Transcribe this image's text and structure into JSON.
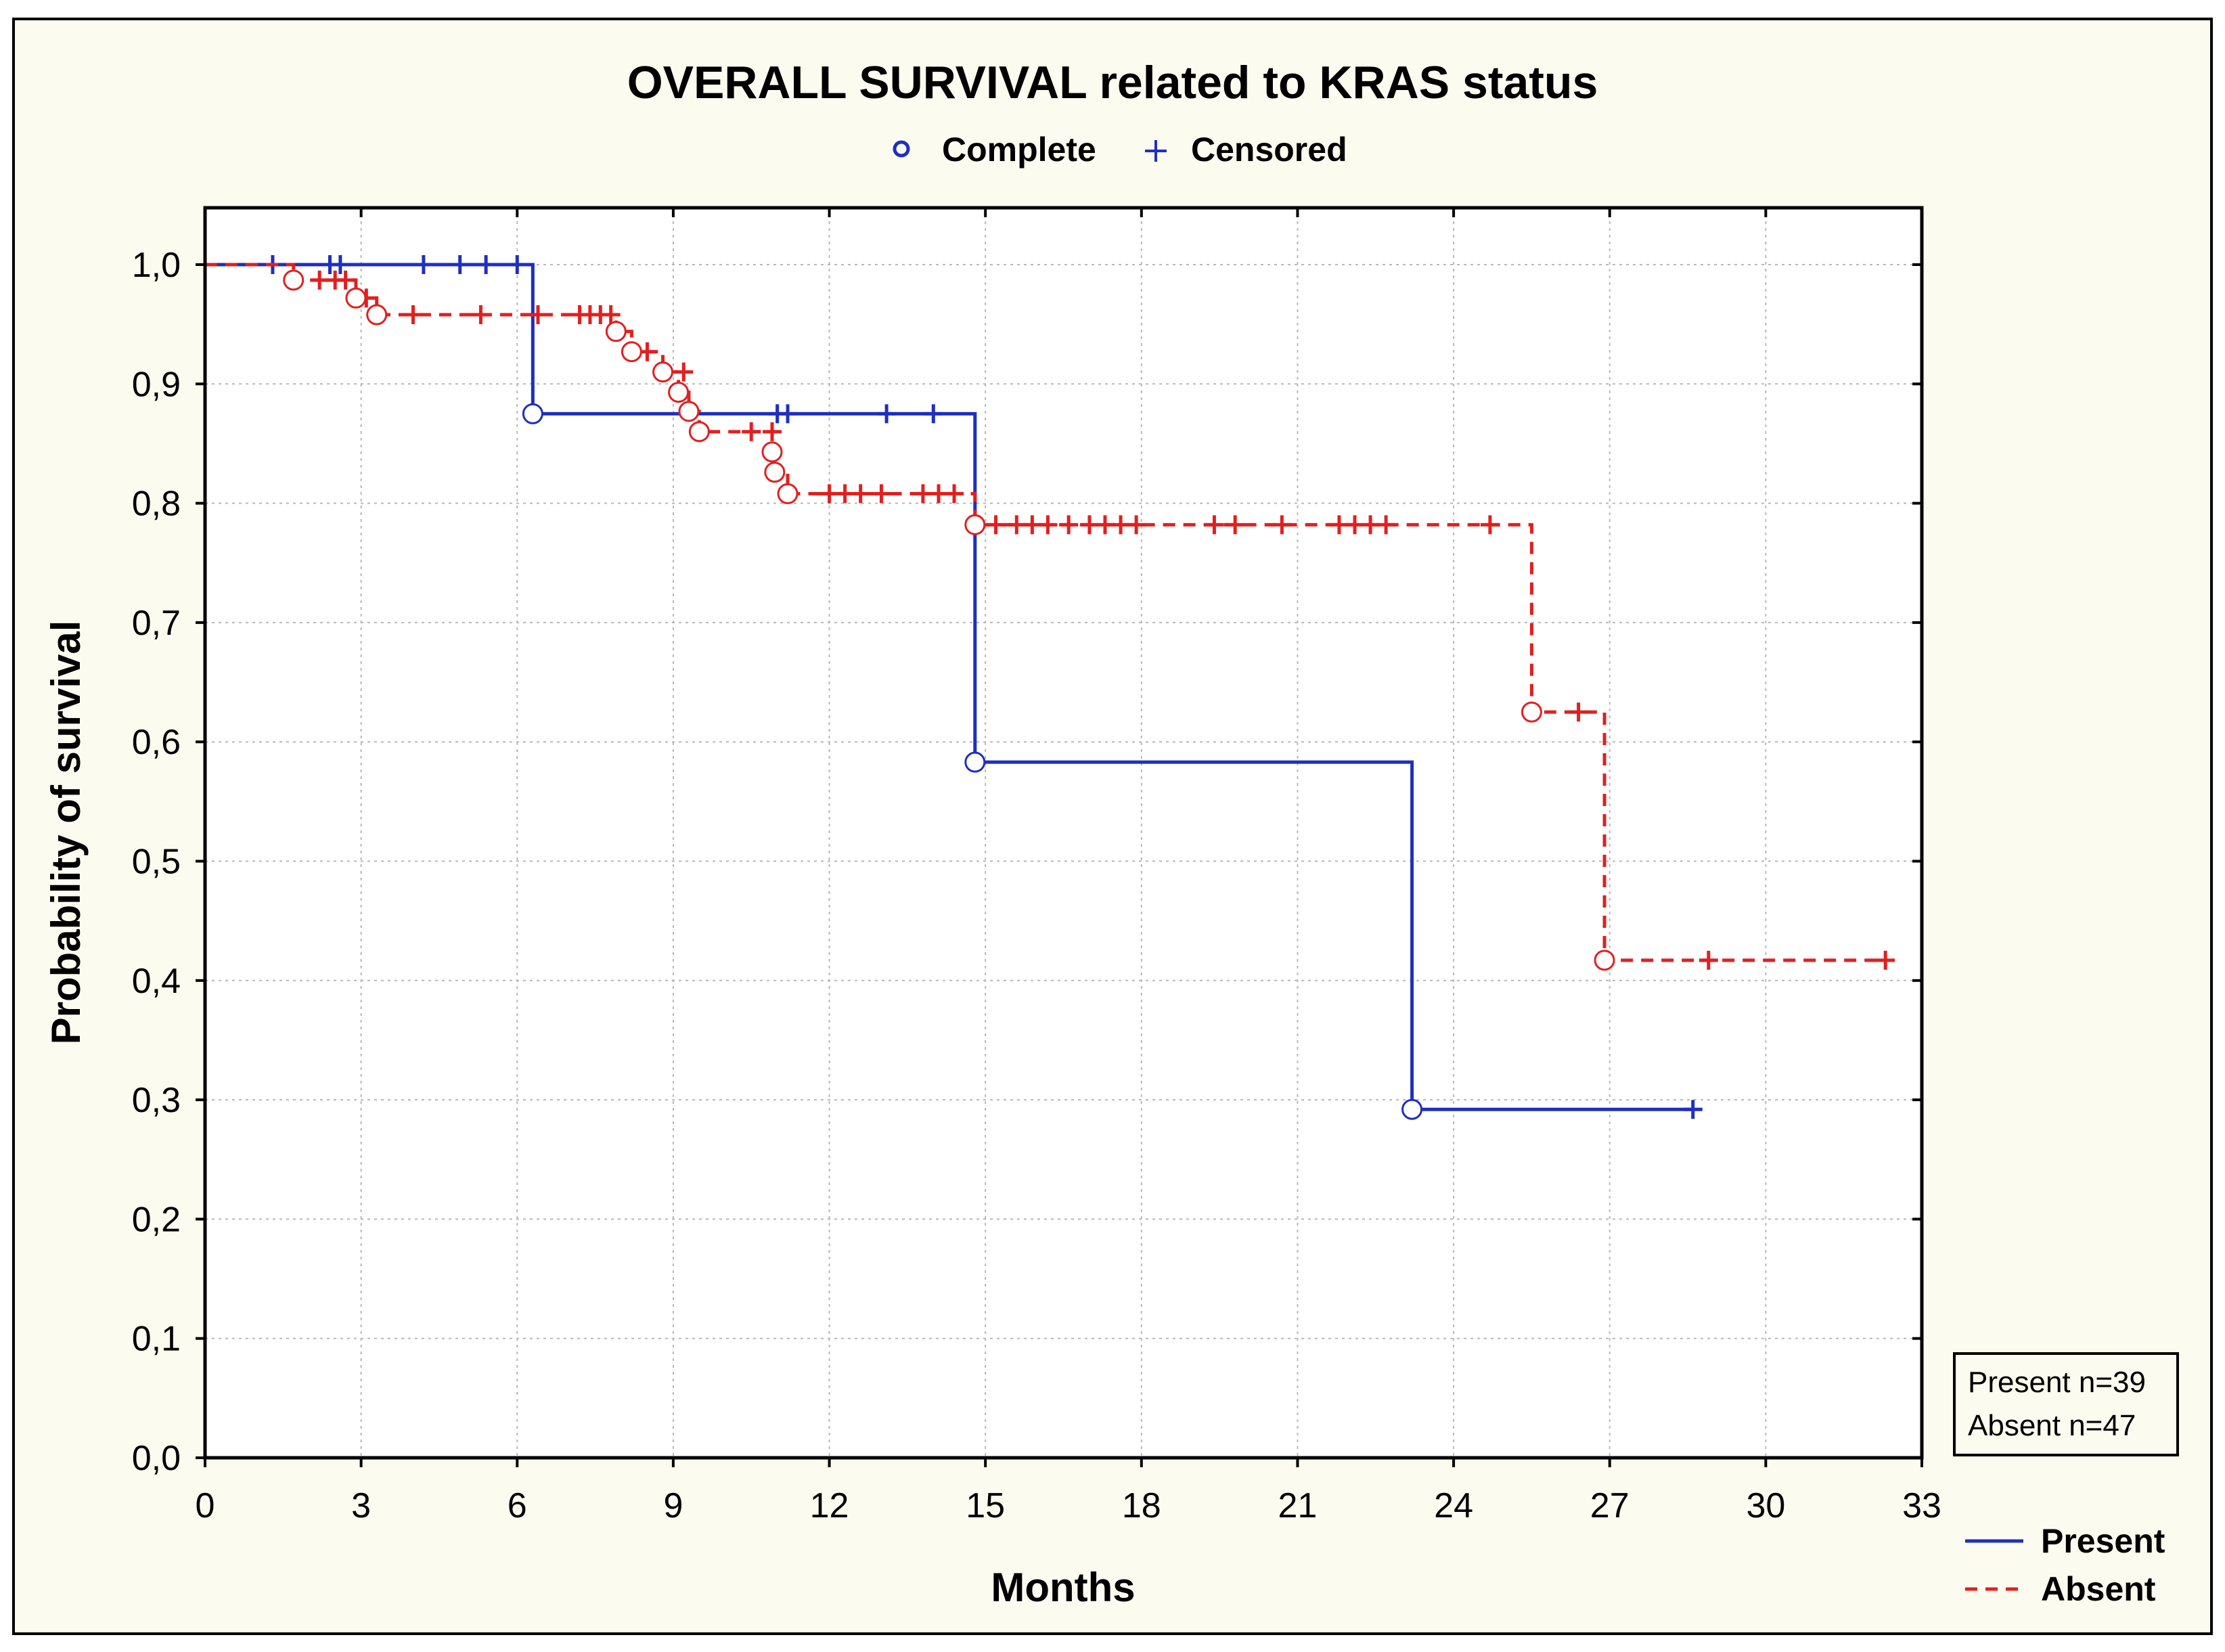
{
  "chart_data": {
    "type": "line",
    "subtype": "kaplan-meier-step",
    "title": "OVERALL SURVIVAL related to KRAS status",
    "marker_legend": {
      "complete": "Complete",
      "censored": "Censored"
    },
    "xlabel": "Months",
    "ylabel": "Probability of survival",
    "xlim": [
      0,
      33
    ],
    "ylim": [
      0.0,
      1.0
    ],
    "x_ticks": [
      "0",
      "3",
      "6",
      "9",
      "12",
      "15",
      "18",
      "21",
      "24",
      "27",
      "30",
      "33"
    ],
    "y_ticks": [
      "0,0",
      "0,1",
      "0,2",
      "0,3",
      "0,4",
      "0,5",
      "0,6",
      "0,7",
      "0,8",
      "0,9",
      "1,0"
    ],
    "grid": true,
    "counts_box": [
      "Present n=39",
      "Absent n=47"
    ],
    "series": [
      {
        "name": "Present",
        "color": "#1f2fbf",
        "dash": "solid",
        "steps": [
          [
            0,
            1.0
          ],
          [
            6.3,
            0.875
          ],
          [
            14.8,
            0.583
          ],
          [
            23.2,
            0.292
          ],
          [
            28.6,
            0.292
          ]
        ],
        "complete": [
          [
            6.3,
            0.875
          ],
          [
            14.8,
            0.583
          ],
          [
            23.2,
            0.292
          ]
        ],
        "censored": [
          [
            1.3,
            1.0
          ],
          [
            2.4,
            1.0
          ],
          [
            2.6,
            1.0
          ],
          [
            4.2,
            1.0
          ],
          [
            4.9,
            1.0
          ],
          [
            5.4,
            1.0
          ],
          [
            6.0,
            1.0
          ],
          [
            11.0,
            0.875
          ],
          [
            11.2,
            0.875
          ],
          [
            13.1,
            0.875
          ],
          [
            14.0,
            0.875
          ],
          [
            28.6,
            0.292
          ]
        ]
      },
      {
        "name": "Absent",
        "color": "#e02020",
        "dash": "dashed",
        "steps": [
          [
            0,
            1.0
          ],
          [
            1.7,
            0.987
          ],
          [
            2.9,
            0.972
          ],
          [
            3.3,
            0.958
          ],
          [
            7.9,
            0.944
          ],
          [
            8.2,
            0.927
          ],
          [
            8.8,
            0.91
          ],
          [
            9.1,
            0.893
          ],
          [
            9.3,
            0.877
          ],
          [
            9.5,
            0.86
          ],
          [
            10.9,
            0.843
          ],
          [
            10.95,
            0.826
          ],
          [
            11.2,
            0.808
          ],
          [
            14.8,
            0.782
          ],
          [
            25.5,
            0.625
          ],
          [
            26.9,
            0.417
          ],
          [
            32.3,
            0.417
          ]
        ],
        "complete": [
          [
            1.7,
            0.987
          ],
          [
            2.9,
            0.972
          ],
          [
            3.3,
            0.958
          ],
          [
            7.9,
            0.944
          ],
          [
            8.2,
            0.927
          ],
          [
            8.8,
            0.91
          ],
          [
            9.1,
            0.893
          ],
          [
            9.3,
            0.877
          ],
          [
            9.5,
            0.86
          ],
          [
            10.9,
            0.843
          ],
          [
            10.95,
            0.826
          ],
          [
            11.2,
            0.808
          ],
          [
            14.8,
            0.782
          ],
          [
            25.5,
            0.625
          ],
          [
            26.9,
            0.417
          ]
        ],
        "censored": [
          [
            2.2,
            0.987
          ],
          [
            2.5,
            0.987
          ],
          [
            2.7,
            0.987
          ],
          [
            3.1,
            0.972
          ],
          [
            4.0,
            0.958
          ],
          [
            5.3,
            0.958
          ],
          [
            6.4,
            0.958
          ],
          [
            7.2,
            0.958
          ],
          [
            7.4,
            0.958
          ],
          [
            7.6,
            0.958
          ],
          [
            7.8,
            0.958
          ],
          [
            8.5,
            0.927
          ],
          [
            9.2,
            0.91
          ],
          [
            10.5,
            0.86
          ],
          [
            10.9,
            0.86
          ],
          [
            12.0,
            0.808
          ],
          [
            12.3,
            0.808
          ],
          [
            12.6,
            0.808
          ],
          [
            13.0,
            0.808
          ],
          [
            13.8,
            0.808
          ],
          [
            14.1,
            0.808
          ],
          [
            14.4,
            0.808
          ],
          [
            15.2,
            0.782
          ],
          [
            15.6,
            0.782
          ],
          [
            15.9,
            0.782
          ],
          [
            16.2,
            0.782
          ],
          [
            16.6,
            0.782
          ],
          [
            17.0,
            0.782
          ],
          [
            17.3,
            0.782
          ],
          [
            17.6,
            0.782
          ],
          [
            17.9,
            0.782
          ],
          [
            19.4,
            0.782
          ],
          [
            19.8,
            0.782
          ],
          [
            20.7,
            0.782
          ],
          [
            21.8,
            0.782
          ],
          [
            22.1,
            0.782
          ],
          [
            22.4,
            0.782
          ],
          [
            22.7,
            0.782
          ],
          [
            24.7,
            0.782
          ],
          [
            26.4,
            0.625
          ],
          [
            28.9,
            0.417
          ],
          [
            32.3,
            0.417
          ]
        ]
      }
    ]
  }
}
